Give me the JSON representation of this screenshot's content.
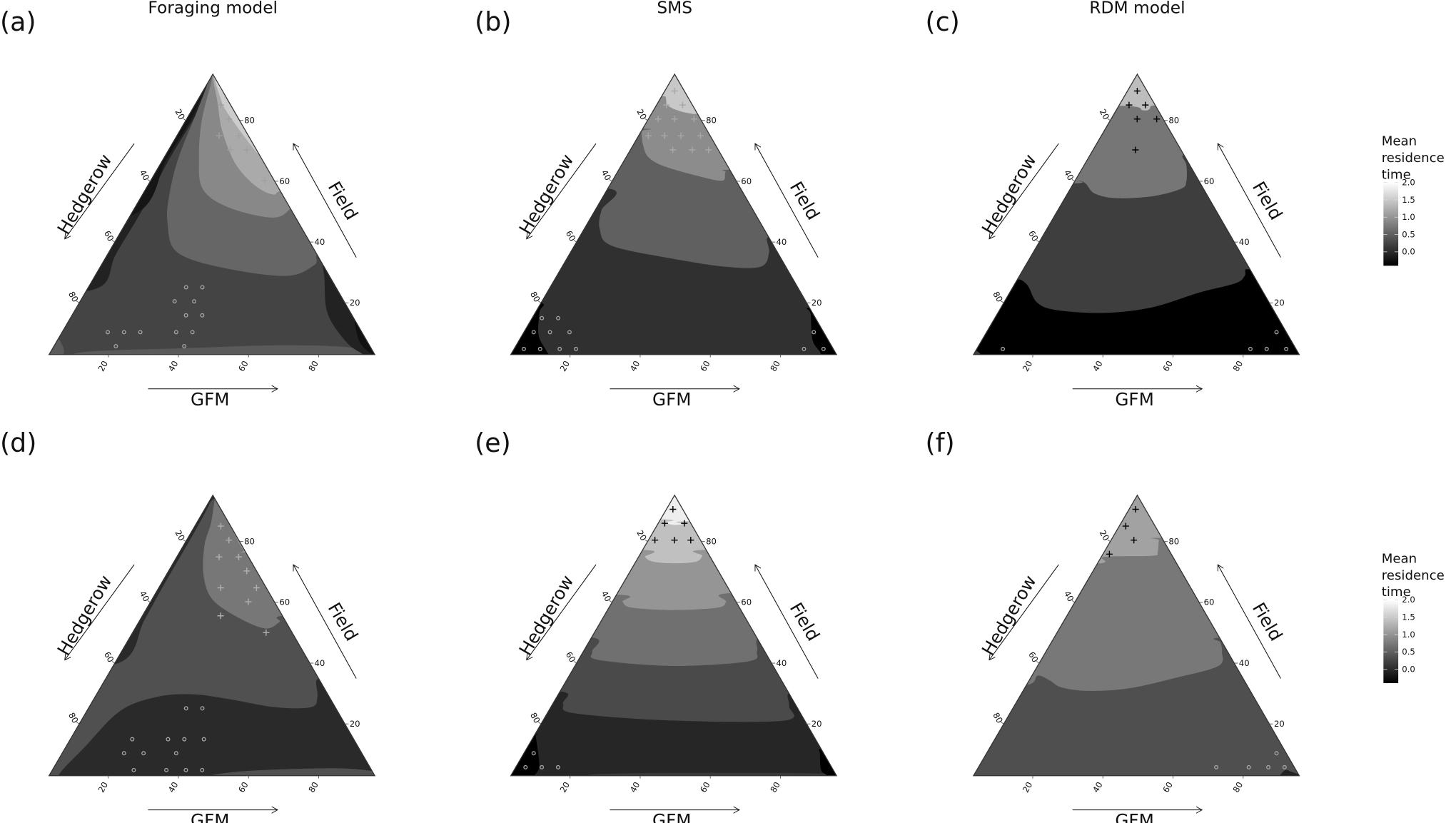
{
  "legend": {
    "title_lines": [
      "Mean",
      "residence",
      "time"
    ],
    "tick_labels": [
      "2.0",
      "1.5",
      "1.0",
      "0.5",
      "0.0"
    ],
    "tick_values": [
      2.0,
      1.5,
      1.0,
      0.5,
      0.0
    ],
    "range": [
      -0.4,
      2.0
    ],
    "colors": {
      "high": "#ffffff",
      "low": "#000000"
    }
  },
  "chart_data": [
    {
      "type": "ternary-contour",
      "panel_label": "(a)",
      "title": "Foraging model",
      "axes": {
        "left": "Hedgerow",
        "right": "Field",
        "bottom": "GFM"
      },
      "tick_labels": [
        "20",
        "40",
        "60",
        "80"
      ],
      "tick_values": [
        20,
        40,
        60,
        80
      ],
      "marker_color": "#a0a0a0",
      "plus_points": [
        {
          "gfm": 8,
          "field": 89
        },
        {
          "gfm": 13,
          "field": 84
        },
        {
          "gfm": 13,
          "field": 78
        },
        {
          "gfm": 19,
          "field": 78
        },
        {
          "gfm": 19,
          "field": 73
        },
        {
          "gfm": 24,
          "field": 73
        },
        {
          "gfm": 35,
          "field": 62
        }
      ],
      "circle_points": [
        {
          "gfm": 30,
          "field": 24
        },
        {
          "gfm": 35,
          "field": 24
        },
        {
          "gfm": 29,
          "field": 19
        },
        {
          "gfm": 35,
          "field": 19
        },
        {
          "gfm": 35,
          "field": 14
        },
        {
          "gfm": 40,
          "field": 14
        },
        {
          "gfm": 14,
          "field": 8
        },
        {
          "gfm": 19,
          "field": 8
        },
        {
          "gfm": 24,
          "field": 8
        },
        {
          "gfm": 35,
          "field": 8
        },
        {
          "gfm": 40,
          "field": 8
        },
        {
          "gfm": 19,
          "field": 3
        },
        {
          "gfm": 40,
          "field": 3
        }
      ]
    },
    {
      "type": "ternary-contour",
      "panel_label": "(b)",
      "title": "SMS",
      "axes": {
        "left": "Hedgerow",
        "right": "Field",
        "bottom": "GFM"
      },
      "tick_labels": [
        "20",
        "40",
        "60",
        "80"
      ],
      "tick_values": [
        20,
        40,
        60,
        80
      ],
      "marker_color": "#a8a8a8",
      "plus_points": [
        {
          "gfm": 3,
          "field": 94
        },
        {
          "gfm": 3,
          "field": 89
        },
        {
          "gfm": 8,
          "field": 89
        },
        {
          "gfm": 3,
          "field": 84
        },
        {
          "gfm": 8,
          "field": 84
        },
        {
          "gfm": 14,
          "field": 84
        },
        {
          "gfm": 3,
          "field": 78
        },
        {
          "gfm": 8,
          "field": 78
        },
        {
          "gfm": 13,
          "field": 78
        },
        {
          "gfm": 19,
          "field": 78
        },
        {
          "gfm": 13,
          "field": 73
        },
        {
          "gfm": 19,
          "field": 73
        },
        {
          "gfm": 24,
          "field": 73
        }
      ],
      "circle_points": [
        {
          "gfm": 3,
          "field": 13
        },
        {
          "gfm": 8,
          "field": 13
        },
        {
          "gfm": 3,
          "field": 8
        },
        {
          "gfm": 8,
          "field": 8
        },
        {
          "gfm": 14,
          "field": 8
        },
        {
          "gfm": 3,
          "field": 2
        },
        {
          "gfm": 8,
          "field": 2
        },
        {
          "gfm": 14,
          "field": 2
        },
        {
          "gfm": 19,
          "field": 2
        },
        {
          "gfm": 89,
          "field": 8
        },
        {
          "gfm": 89,
          "field": 2
        },
        {
          "gfm": 95,
          "field": 2
        }
      ]
    },
    {
      "type": "ternary-contour",
      "panel_label": "(c)",
      "title": "RDM model",
      "axes": {
        "left": "Hedgerow",
        "right": "Field",
        "bottom": "GFM"
      },
      "tick_labels": [
        "20",
        "40",
        "60",
        "80"
      ],
      "tick_values": [
        20,
        40,
        60,
        80
      ],
      "marker_color": "#000000",
      "plus_points": [
        {
          "gfm": 3,
          "field": 94
        },
        {
          "gfm": 3,
          "field": 89
        },
        {
          "gfm": 8,
          "field": 89
        },
        {
          "gfm": 8,
          "field": 84
        },
        {
          "gfm": 14,
          "field": 84
        },
        {
          "gfm": 13,
          "field": 73
        }
      ],
      "circle_points": [
        {
          "gfm": 8,
          "field": 2
        },
        {
          "gfm": 89,
          "field": 8
        },
        {
          "gfm": 84,
          "field": 2
        },
        {
          "gfm": 89,
          "field": 2
        },
        {
          "gfm": 95,
          "field": 2
        }
      ]
    },
    {
      "type": "ternary-contour",
      "panel_label": "(d)",
      "title": "",
      "axes": {
        "left": "Hedgerow",
        "right": "Field",
        "bottom": "GFM"
      },
      "tick_labels": [
        "20",
        "40",
        "60",
        "80"
      ],
      "tick_values": [
        20,
        40,
        60,
        80
      ],
      "marker_color": "#b0b0b0",
      "plus_points": [
        {
          "gfm": 8,
          "field": 89
        },
        {
          "gfm": 13,
          "field": 84
        },
        {
          "gfm": 13,
          "field": 78
        },
        {
          "gfm": 19,
          "field": 78
        },
        {
          "gfm": 24,
          "field": 73
        },
        {
          "gfm": 19,
          "field": 67
        },
        {
          "gfm": 30,
          "field": 67
        },
        {
          "gfm": 30,
          "field": 62
        },
        {
          "gfm": 24,
          "field": 57
        },
        {
          "gfm": 41,
          "field": 51
        }
      ],
      "circle_points": [
        {
          "gfm": 30,
          "field": 24
        },
        {
          "gfm": 35,
          "field": 24
        },
        {
          "gfm": 19,
          "field": 13
        },
        {
          "gfm": 30,
          "field": 13
        },
        {
          "gfm": 35,
          "field": 13
        },
        {
          "gfm": 41,
          "field": 13
        },
        {
          "gfm": 19,
          "field": 8
        },
        {
          "gfm": 25,
          "field": 8
        },
        {
          "gfm": 35,
          "field": 8
        },
        {
          "gfm": 25,
          "field": 2
        },
        {
          "gfm": 35,
          "field": 2
        },
        {
          "gfm": 41,
          "field": 2
        },
        {
          "gfm": 46,
          "field": 2
        }
      ]
    },
    {
      "type": "ternary-contour",
      "panel_label": "(e)",
      "title": "",
      "axes": {
        "left": "Hedgerow",
        "right": "Field",
        "bottom": "GFM"
      },
      "tick_labels": [
        "20",
        "40",
        "60",
        "80"
      ],
      "tick_values": [
        20,
        40,
        60,
        80
      ],
      "marker_color": "#000000",
      "plus_points": [
        {
          "gfm": 2,
          "field": 95
        },
        {
          "gfm": 2,
          "field": 90
        },
        {
          "gfm": 8,
          "field": 90
        },
        {
          "gfm": 2,
          "field": 84
        },
        {
          "gfm": 8,
          "field": 84
        },
        {
          "gfm": 13,
          "field": 84
        }
      ],
      "circle_points": [
        {
          "gfm": 3,
          "field": 8
        },
        {
          "gfm": 3,
          "field": 3
        },
        {
          "gfm": 8,
          "field": 3
        },
        {
          "gfm": 13,
          "field": 3
        }
      ]
    },
    {
      "type": "ternary-contour",
      "panel_label": "(f)",
      "title": "",
      "axes": {
        "left": "Hedgerow",
        "right": "Field",
        "bottom": "GFM"
      },
      "tick_labels": [
        "20",
        "40",
        "60",
        "80"
      ],
      "tick_values": [
        20,
        40,
        60,
        80
      ],
      "marker_color": "#000000",
      "plus_points": [
        {
          "gfm": 2,
          "field": 95
        },
        {
          "gfm": 2,
          "field": 89
        },
        {
          "gfm": 7,
          "field": 84
        },
        {
          "gfm": 2,
          "field": 79
        }
      ],
      "circle_points": [
        {
          "gfm": 89,
          "field": 8
        },
        {
          "gfm": 73,
          "field": 3
        },
        {
          "gfm": 83,
          "field": 3
        },
        {
          "gfm": 89,
          "field": 3
        },
        {
          "gfm": 94,
          "field": 3
        }
      ]
    }
  ]
}
